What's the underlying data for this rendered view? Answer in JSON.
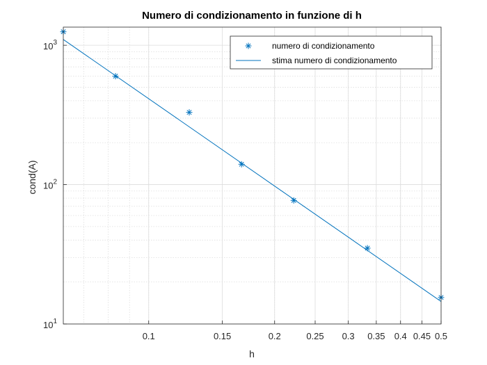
{
  "chart_data": {
    "type": "scatter",
    "title": "Numero di condizionamento in funzione di h",
    "xlabel": "h",
    "ylabel": "cond(A)",
    "xscale": "log",
    "yscale": "log",
    "xlim": [
      0.0625,
      0.5
    ],
    "ylim": [
      10,
      1350
    ],
    "grid": true,
    "legend_position": "top-right",
    "x_ticks": [
      {
        "value": 0.1,
        "label": "0.1"
      },
      {
        "value": 0.15,
        "label": "0.15"
      },
      {
        "value": 0.2,
        "label": "0.2"
      },
      {
        "value": 0.25,
        "label": "0.25"
      },
      {
        "value": 0.3,
        "label": "0.3"
      },
      {
        "value": 0.35,
        "label": "0.35"
      },
      {
        "value": 0.4,
        "label": "0.4"
      },
      {
        "value": 0.45,
        "label": "0.45"
      },
      {
        "value": 0.5,
        "label": "0.5"
      }
    ],
    "y_ticks": [
      {
        "value": 10,
        "base": "10",
        "exp": "1"
      },
      {
        "value": 100,
        "base": "10",
        "exp": "2"
      },
      {
        "value": 1000,
        "base": "10",
        "exp": "3"
      }
    ],
    "series": [
      {
        "name": "numero di condizionamento",
        "kind": "markers",
        "marker": "asterisk",
        "color": "#0072bd",
        "x": [
          0.0625,
          0.0833,
          0.125,
          0.1667,
          0.2222,
          0.3333,
          0.5
        ],
        "y": [
          1250,
          600,
          330,
          140,
          77,
          35,
          15.5
        ]
      },
      {
        "name": "stima numero di condizionamento",
        "kind": "line",
        "color": "#0072bd",
        "x": [
          0.0625,
          0.5
        ],
        "y": [
          1100,
          14.5
        ]
      }
    ]
  }
}
